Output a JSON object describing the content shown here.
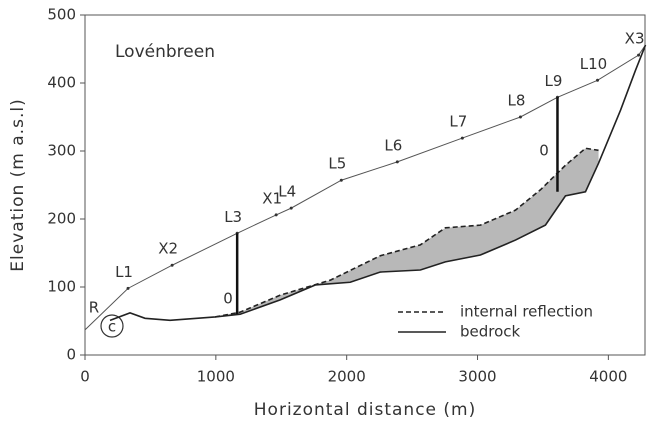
{
  "chart_data": {
    "type": "line",
    "title": "Lovénbreen",
    "xlabel": "Horizontal distance (m)",
    "ylabel": "Elevation (m a.s.l)",
    "xlim": [
      0,
      4280
    ],
    "ylim": [
      0,
      500
    ],
    "xticks": [
      0,
      1000,
      2000,
      3000,
      4000
    ],
    "yticks": [
      0,
      100,
      200,
      300,
      400,
      500
    ],
    "surface": {
      "color": "#555555",
      "x": [
        0,
        329,
        666,
        1163,
        1461,
        1576,
        1959,
        2387,
        2884,
        3328,
        3611,
        3917,
        4231,
        4284
      ],
      "values": [
        37,
        98,
        132,
        179,
        206,
        216,
        257,
        284,
        319,
        350,
        379,
        404,
        441,
        456
      ]
    },
    "series": [
      {
        "name": "internal reflection",
        "color": "#222222",
        "style": "dashed",
        "x": [
          995,
          1186,
          1492,
          1874,
          2257,
          2563,
          2754,
          3022,
          3290,
          3481,
          3672,
          3825,
          3925
        ],
        "values": [
          56,
          63,
          88,
          110,
          146,
          162,
          187,
          191,
          213,
          243,
          279,
          304,
          301
        ]
      },
      {
        "name": "bedrock",
        "color": "#222222",
        "style": "solid",
        "x": [
          191,
          344,
          459,
          650,
          995,
          1186,
          1492,
          1760,
          2027,
          2257,
          2563,
          2754,
          3022,
          3290,
          3519,
          3672,
          3825,
          3925,
          4093,
          4208,
          4284
        ],
        "values": [
          51,
          62,
          54,
          51,
          56,
          60,
          81,
          103,
          107,
          122,
          125,
          137,
          147,
          169,
          191,
          234,
          240,
          282,
          360,
          419,
          456
        ]
      }
    ],
    "stakes": {
      "labels": [
        "L1",
        "X2",
        "L3",
        "X1",
        "L4",
        "L5",
        "L6",
        "L7",
        "L8",
        "L9",
        "L10",
        "X3"
      ],
      "x": [
        329,
        666,
        1163,
        1461,
        1576,
        1959,
        2387,
        2884,
        3328,
        3611,
        3917,
        4231
      ],
      "values": [
        98,
        132,
        179,
        206,
        216,
        257,
        284,
        319,
        350,
        379,
        404,
        441
      ]
    },
    "profiles": {
      "x": [
        1163,
        3611
      ],
      "top": [
        179,
        379
      ],
      "bottom": [
        60,
        240
      ]
    },
    "annotations": {
      "start": "R",
      "panel": "c",
      "depth_zero": [
        "0",
        "0"
      ]
    },
    "legend": "lower right"
  }
}
